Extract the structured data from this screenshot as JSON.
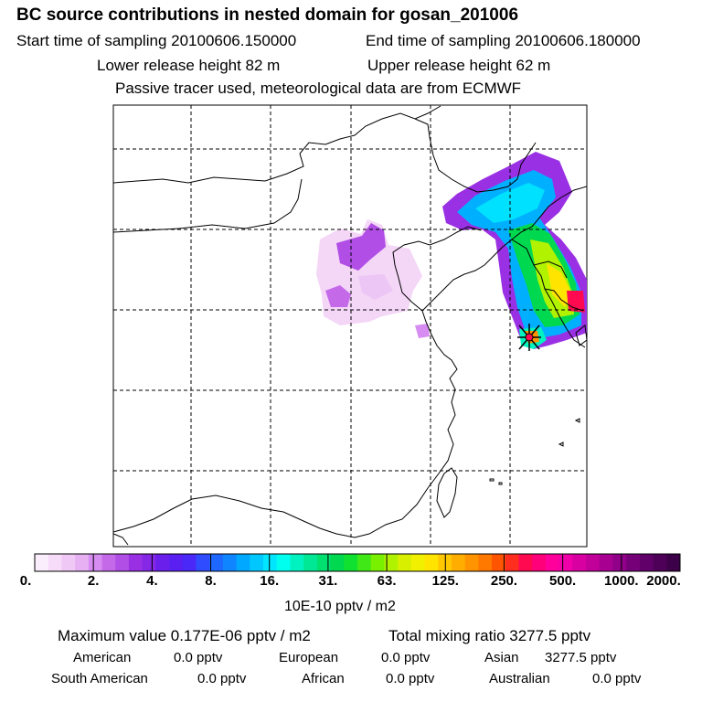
{
  "header": {
    "title": "BC  source contributions in nested domain for gosan_201006",
    "start_time": "Start time of sampling 20100606.150000",
    "end_time": "End time of sampling 20100606.180000",
    "lower_release": "Lower release height   82 m",
    "upper_release": "Upper release height   62 m",
    "tracer_note": "Passive tracer used, meteorological data are from ECMWF"
  },
  "colorbar": {
    "ticks": [
      "0.",
      "2.",
      "4.",
      "8.",
      "16.",
      "31.",
      "63.",
      "125.",
      "250.",
      "500.",
      "1000.",
      "2000."
    ],
    "unit": "10E-10 pptv / m2",
    "colors": [
      "#fbeefc",
      "#f6dcf8",
      "#f0c8f5",
      "#e6b0f2",
      "#d68cf0",
      "#c46ae9",
      "#b04ee6",
      "#9a30e4",
      "#8428e6",
      "#6a1fea",
      "#5a20f2",
      "#4a28f8",
      "#2f4cff",
      "#1e68ff",
      "#0f86ff",
      "#00a8ff",
      "#00c8ff",
      "#00e6ff",
      "#00ffee",
      "#00f2c0",
      "#00e896",
      "#00e070",
      "#00d850",
      "#10e030",
      "#40e818",
      "#78f000",
      "#b0f200",
      "#d8f000",
      "#f0f000",
      "#ffe400",
      "#ffc800",
      "#ffae00",
      "#ff9400",
      "#ff7800",
      "#ff5400",
      "#ff2e1e",
      "#ff0a50",
      "#ff007a",
      "#ff009c",
      "#f000a8",
      "#d800a0",
      "#c00098",
      "#a80090",
      "#900088",
      "#760078",
      "#600068",
      "#4e0058",
      "#3c0048"
    ]
  },
  "stats": {
    "maximum": "Maximum value  0.177E-06 pptv / m2",
    "total": "Total mixing ratio     3277.5 pptv"
  },
  "contributions": [
    {
      "region": "American",
      "value": "0.0 pptv"
    },
    {
      "region": "European",
      "value": "0.0 pptv"
    },
    {
      "region": "Asian",
      "value": "3277.5 pptv"
    },
    {
      "region": "South American",
      "value": "0.0 pptv"
    },
    {
      "region": "African",
      "value": "0.0 pptv"
    },
    {
      "region": "Australian",
      "value": "0.0 pptv"
    }
  ]
}
